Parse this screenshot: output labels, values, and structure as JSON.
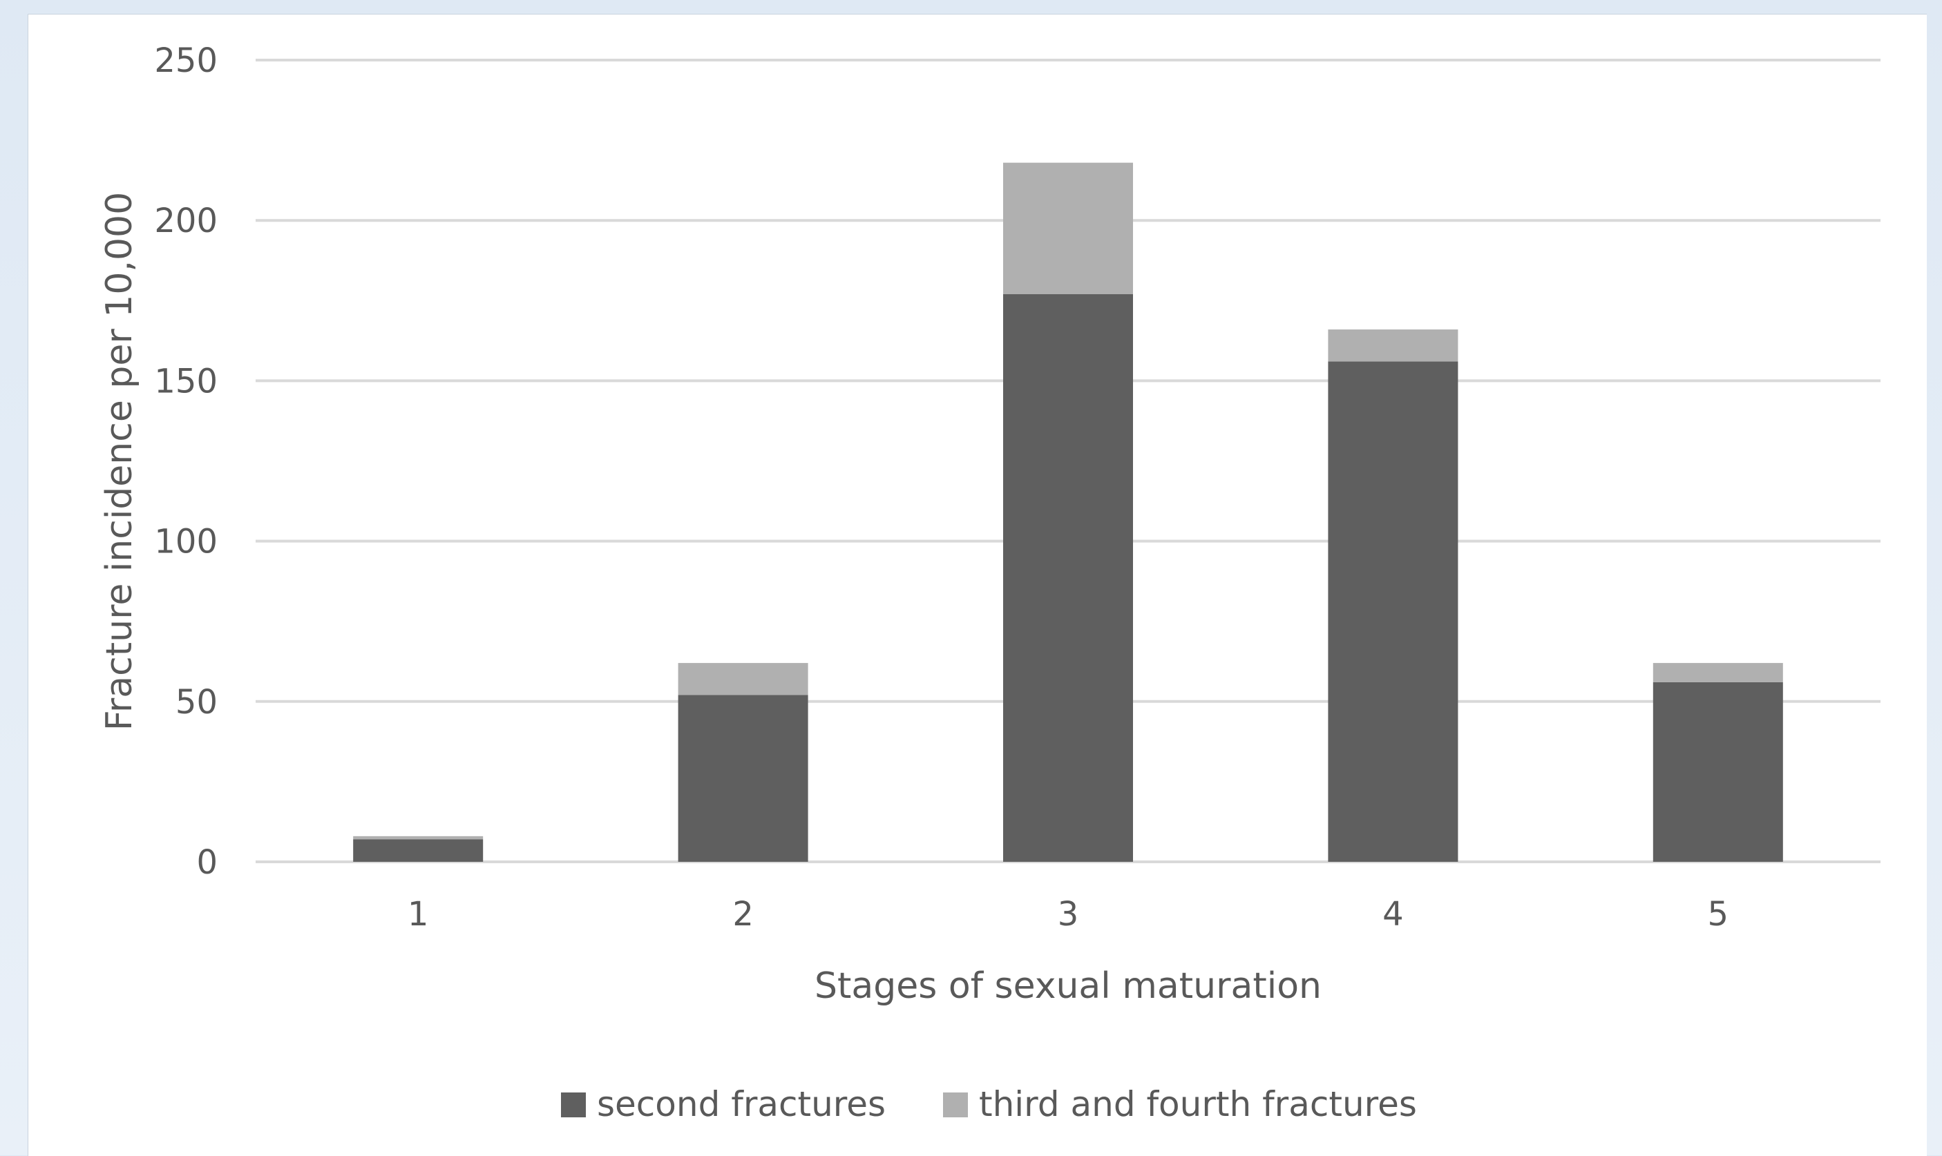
{
  "chart_data": {
    "type": "bar",
    "stacked": true,
    "categories": [
      "1",
      "2",
      "3",
      "4",
      "5"
    ],
    "series": [
      {
        "name": "second fractures",
        "color": "#5f5f5f",
        "values": [
          7,
          52,
          177,
          156,
          56
        ]
      },
      {
        "name": "third and fourth fractures",
        "color": "#b0b0b0",
        "values": [
          1,
          10,
          41,
          10,
          6
        ]
      }
    ],
    "xlabel": "Stages of sexual maturation",
    "ylabel": "Fracture incidence per 10,000",
    "ylim": [
      0,
      250
    ],
    "yticks": [
      "0",
      "50",
      "100",
      "150",
      "200",
      "250"
    ],
    "grid": true,
    "legend": "bottom"
  }
}
